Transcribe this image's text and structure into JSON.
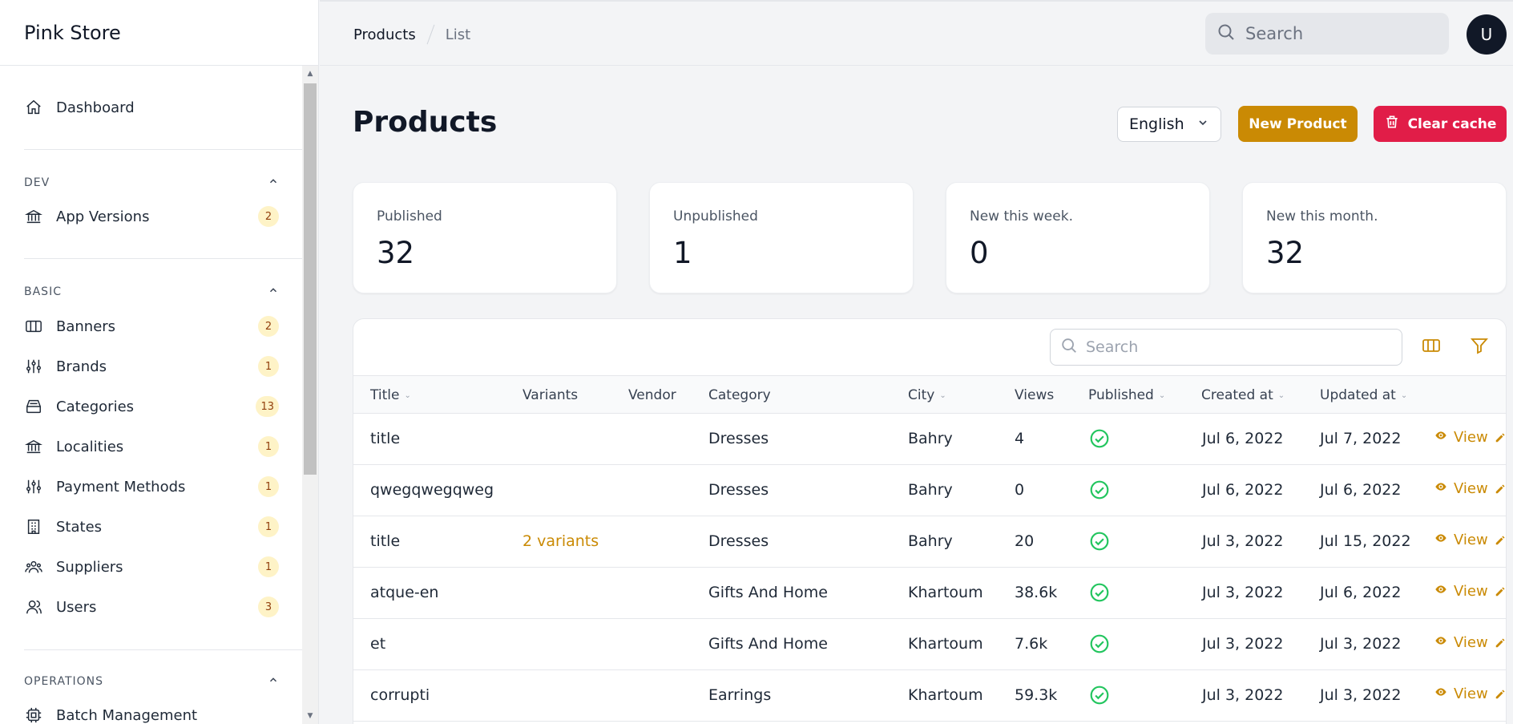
{
  "brand": "Pink Store",
  "nav": {
    "dashboard": "Dashboard",
    "groups": [
      {
        "title": "DEV",
        "items": [
          {
            "label": "App Versions",
            "icon": "bank-icon",
            "count": "2"
          }
        ]
      },
      {
        "title": "BASIC",
        "items": [
          {
            "label": "Banners",
            "icon": "columns-icon",
            "count": "2"
          },
          {
            "label": "Brands",
            "icon": "sliders-icon",
            "count": "1"
          },
          {
            "label": "Categories",
            "icon": "inbox-stack-icon",
            "count": "13"
          },
          {
            "label": "Localities",
            "icon": "bank-icon",
            "count": "1"
          },
          {
            "label": "Payment Methods",
            "icon": "sliders-icon",
            "count": "1"
          },
          {
            "label": "States",
            "icon": "building-icon",
            "count": "1"
          },
          {
            "label": "Suppliers",
            "icon": "user-group-icon",
            "count": "1"
          },
          {
            "label": "Users",
            "icon": "users-icon",
            "count": "3"
          }
        ]
      },
      {
        "title": "OPERATIONS",
        "items": [
          {
            "label": "Batch Management",
            "icon": "cpu-icon"
          }
        ]
      }
    ]
  },
  "breadcrumb": {
    "first": "Products",
    "second": "List"
  },
  "topbar": {
    "search_placeholder": "Search",
    "avatar_initial": "U"
  },
  "header": {
    "title": "Products",
    "language": "English",
    "new_button": "New Product",
    "clear_button": "Clear cache"
  },
  "stats": [
    {
      "label": "Published",
      "value": "32"
    },
    {
      "label": "Unpublished",
      "value": "1"
    },
    {
      "label": "New this week.",
      "value": "0"
    },
    {
      "label": "New this month.",
      "value": "32"
    }
  ],
  "table": {
    "search_placeholder": "Search",
    "columns": [
      "Title",
      "Variants",
      "Vendor",
      "Category",
      "City",
      "Views",
      "Published",
      "Created at",
      "Updated at"
    ],
    "view_label": "View",
    "rows": [
      {
        "title": "title",
        "variants": "",
        "vendor": "",
        "category": "Dresses",
        "city": "Bahry",
        "views": "4",
        "created": "Jul 6, 2022",
        "updated": "Jul 7, 2022"
      },
      {
        "title": "qwegqwegqweg",
        "variants": "",
        "vendor": "",
        "category": "Dresses",
        "city": "Bahry",
        "views": "0",
        "created": "Jul 6, 2022",
        "updated": "Jul 6, 2022"
      },
      {
        "title": "title",
        "variants": "2 variants",
        "vendor": "",
        "category": "Dresses",
        "city": "Bahry",
        "views": "20",
        "created": "Jul 3, 2022",
        "updated": "Jul 15, 2022"
      },
      {
        "title": "atque-en",
        "variants": "",
        "vendor": "",
        "category": "Gifts And Home",
        "city": "Khartoum",
        "views": "38.6k",
        "created": "Jul 3, 2022",
        "updated": "Jul 6, 2022"
      },
      {
        "title": "et",
        "variants": "",
        "vendor": "",
        "category": "Gifts And Home",
        "city": "Khartoum",
        "views": "7.6k",
        "created": "Jul 3, 2022",
        "updated": "Jul 3, 2022"
      },
      {
        "title": "corrupti",
        "variants": "",
        "vendor": "",
        "category": "Earrings",
        "city": "Khartoum",
        "views": "59.3k",
        "created": "Jul 3, 2022",
        "updated": "Jul 3, 2022"
      }
    ]
  },
  "colors": {
    "accent": "#ca8a04",
    "danger": "#e11d48",
    "badge_bg": "#fef3c7",
    "success": "#22c55e"
  }
}
